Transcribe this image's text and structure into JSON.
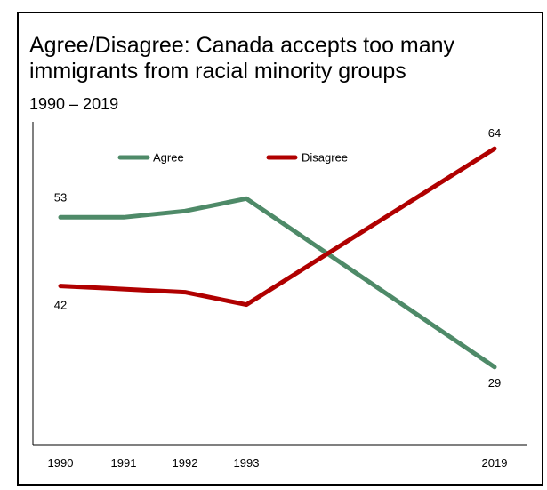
{
  "title_lines": [
    "Agree/Disagree: Canada accepts too many",
    "immigrants from racial minority groups"
  ],
  "subtitle": "1990 – 2019",
  "chart_data": {
    "type": "line",
    "title": "Agree/Disagree: Canada accepts too many immigrants from racial minority groups",
    "subtitle": "1990 – 2019",
    "categories": [
      "1990",
      "1991",
      "1992",
      "1993",
      "2019"
    ],
    "series": [
      {
        "name": "Agree",
        "color": "#4e8a68",
        "values": [
          53,
          53,
          54,
          56,
          29
        ],
        "labels": [
          "53",
          "",
          "",
          "",
          "29"
        ]
      },
      {
        "name": "Disagree",
        "color": "#b00000",
        "values": [
          42,
          41.5,
          41,
          39,
          64
        ],
        "labels": [
          "42",
          "",
          "",
          "",
          "64"
        ]
      }
    ],
    "ylim": [
      20,
      70
    ],
    "grid": false,
    "legend": "top",
    "xlabel": "",
    "ylabel": ""
  }
}
